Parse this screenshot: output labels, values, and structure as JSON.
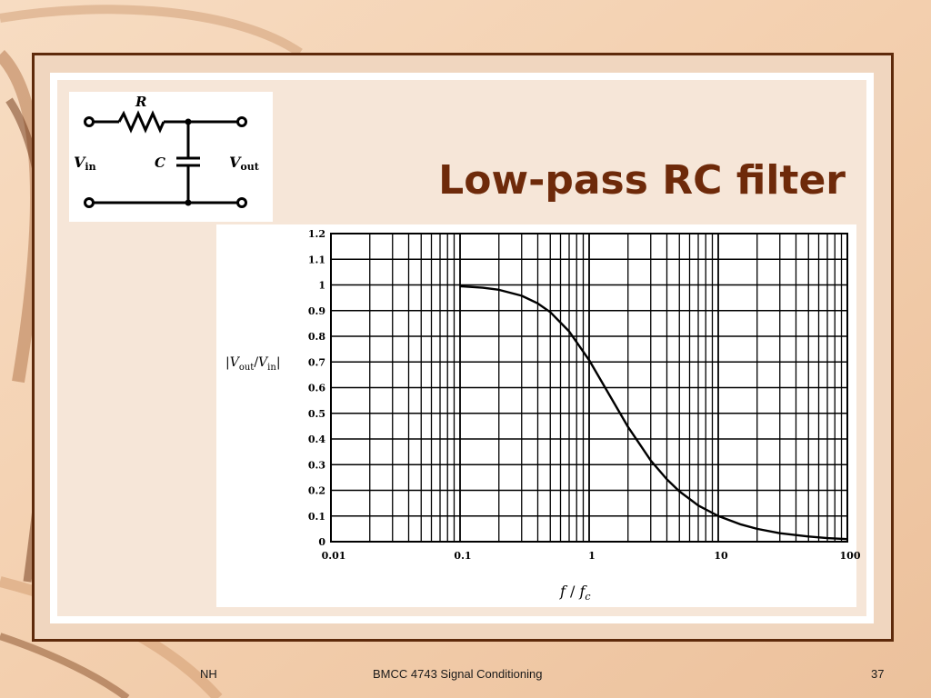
{
  "slide": {
    "title": "Low-pass RC filter",
    "footer_left": "NH",
    "footer_center": "BMCC 4743 Signal Conditioning",
    "page_number": "37"
  },
  "circuit": {
    "resistor_label": "R",
    "capacitor_label": "C",
    "vin_main": "V",
    "vin_sub": "in",
    "vout_main": "V",
    "vout_sub": "out"
  },
  "colors": {
    "title": "#6e2a0a",
    "frame": "#5e2a0b",
    "background": "#f3d2b6"
  },
  "chart_data": {
    "type": "line",
    "ylabel_parts": {
      "main1": "V",
      "sub1": "out",
      "slash": "/",
      "main2": "V",
      "sub2": "in"
    },
    "xlabel_parts": {
      "f": "f",
      "slash": " / ",
      "fc_main": "f",
      "fc_sub": "c"
    },
    "x_scale": "log",
    "xlim": [
      0.01,
      100
    ],
    "ylim": [
      0,
      1.2
    ],
    "x_ticks": [
      0.01,
      0.1,
      1,
      10,
      100
    ],
    "x_tick_labels": [
      "0.01",
      "0.1",
      "1",
      "10",
      "100"
    ],
    "y_ticks": [
      0,
      0.1,
      0.2,
      0.3,
      0.4,
      0.5,
      0.6,
      0.7,
      0.8,
      0.9,
      1,
      1.1,
      1.2
    ],
    "y_tick_labels": [
      "0",
      "0.1",
      "0.2",
      "0.3",
      "0.4",
      "0.5",
      "0.6",
      "0.7",
      "0.8",
      "0.9",
      "1",
      "1.1",
      "1.2"
    ],
    "grid": true,
    "series": [
      {
        "x": [
          0.1,
          0.15,
          0.2,
          0.3,
          0.4,
          0.5,
          0.7,
          1,
          1.5,
          2,
          3,
          4,
          5,
          7,
          10,
          15,
          20,
          30,
          50,
          70,
          100
        ],
        "y": [
          0.995,
          0.989,
          0.981,
          0.958,
          0.928,
          0.894,
          0.819,
          0.707,
          0.555,
          0.447,
          0.316,
          0.243,
          0.196,
          0.141,
          0.1,
          0.067,
          0.05,
          0.033,
          0.02,
          0.014,
          0.01
        ]
      }
    ]
  }
}
